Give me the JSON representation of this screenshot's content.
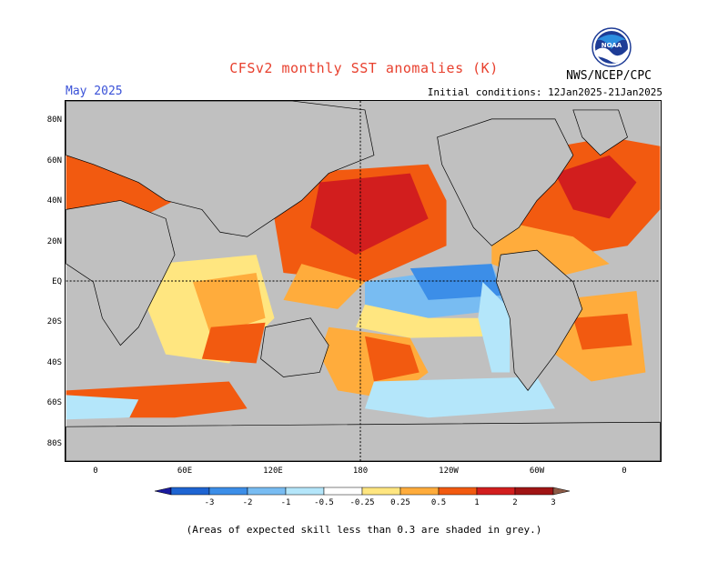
{
  "header": {
    "title": "CFSv2 monthly SST anomalies (K)",
    "month": "May 2025",
    "initial_conditions": "Initial conditions: 12Jan2025-21Jan2025",
    "agency": "NWS/NCEP/CPC",
    "logo_text": "NOAA"
  },
  "axes": {
    "lat_labels": [
      "80N",
      "60N",
      "40N",
      "20N",
      "EQ",
      "20S",
      "40S",
      "60S",
      "80S"
    ],
    "lon_labels": [
      "0",
      "60E",
      "120E",
      "180",
      "120W",
      "60W",
      "0"
    ]
  },
  "colorbar": {
    "labels": [
      "-3",
      "-2",
      "-1",
      "-0.5",
      "-0.25",
      "0.25",
      "0.5",
      "1",
      "2",
      "3"
    ],
    "colors": [
      "#1a1a9e",
      "#1e64d2",
      "#3c8ee8",
      "#78bcf2",
      "#b4e6fa",
      "#ffffff",
      "#ffe680",
      "#ffac3c",
      "#f25a10",
      "#d21e1e",
      "#a01414",
      "#8c5a46"
    ]
  },
  "footnote": "(Areas of expected skill less than 0.3 are shaded in grey.)",
  "colors": {
    "grey": "#c0c0c0",
    "title": "#e8402e",
    "month": "#3a52d8"
  }
}
